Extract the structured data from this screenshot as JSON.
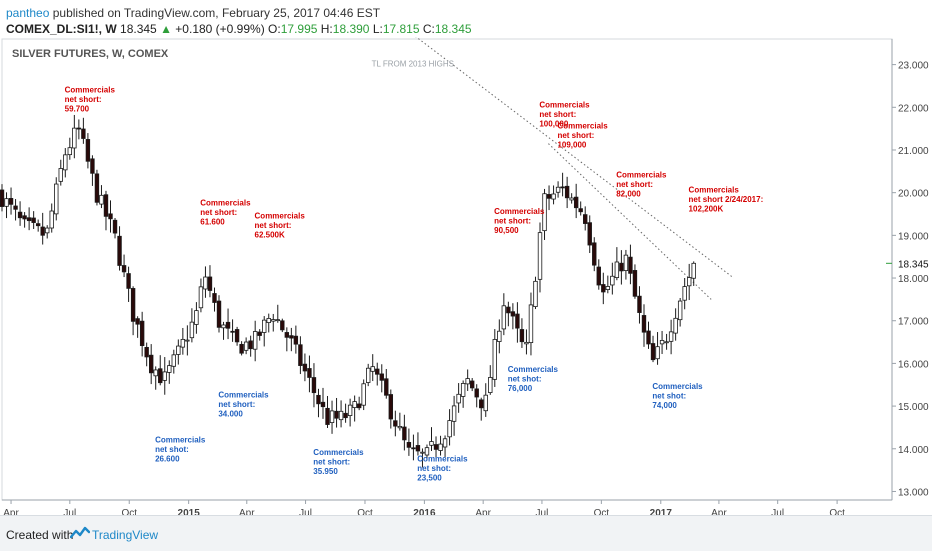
{
  "header": {
    "author": "pantheo",
    "published": "published on TradingView.com, February 25, 2017 04:46 EST",
    "symbol": "COMEX_DL:SI1!, W",
    "last": "18.345",
    "change": "+0.180 (+0.99%)",
    "open_label": "O:",
    "open": "17.995",
    "high_label": "H:",
    "high": "18.390",
    "low_label": "L:",
    "low": "17.815",
    "close_label": "C:",
    "close": "18.345"
  },
  "footer": {
    "created_with": "Created with",
    "brand": "TradingView"
  },
  "colors": {
    "up": "#2e9e3a",
    "down_candle": "#2a0a0a",
    "label_red": "#d40000",
    "label_blue": "#1f5fbf",
    "trendline": "#666666",
    "current_price_line": "#2e9e3a"
  },
  "chart_data": {
    "type": "candlestick",
    "title": "SILVER FUTURES, W, COMEX",
    "x_ticks": [
      "Apr",
      "Jul",
      "Oct",
      "2015",
      "Apr",
      "Jul",
      "Oct",
      "2016",
      "Apr",
      "Jul",
      "Oct",
      "2017",
      "Apr",
      "Jul",
      "Oct"
    ],
    "x_tick_dates": [
      "2014-04-01",
      "2014-07-01",
      "2014-10-01",
      "2015-01-01",
      "2015-04-01",
      "2015-07-01",
      "2015-10-01",
      "2016-01-01",
      "2016-04-01",
      "2016-07-01",
      "2016-10-01",
      "2017-01-01",
      "2017-04-01",
      "2017-07-01",
      "2017-10-01"
    ],
    "bold_ticks": [
      "2015",
      "2016",
      "2017"
    ],
    "y_ticks": [
      "13.000",
      "14.000",
      "15.000",
      "16.000",
      "17.000",
      "18.000",
      "19.000",
      "20.000",
      "21.000",
      "22.000",
      "23.000"
    ],
    "ylim": [
      12.8,
      23.6
    ],
    "xlim": [
      "2014-03-18",
      "2017-12-25"
    ],
    "current_price": "18.345",
    "anchors": [
      [
        "2014-03-18",
        19.9
      ],
      [
        "2014-04-21",
        19.2
      ],
      [
        "2014-05-26",
        19.0
      ],
      [
        "2014-06-23",
        20.9
      ],
      [
        "2014-07-14",
        21.5
      ],
      [
        "2014-08-11",
        20.0
      ],
      [
        "2014-09-08",
        19.0
      ],
      [
        "2014-10-06",
        17.2
      ],
      [
        "2014-11-03",
        16.0
      ],
      [
        "2014-11-24",
        15.6
      ],
      [
        "2014-12-15",
        16.2
      ],
      [
        "2015-01-12",
        17.1
      ],
      [
        "2015-01-26",
        18.1
      ],
      [
        "2015-02-16",
        17.0
      ],
      [
        "2015-03-16",
        16.4
      ],
      [
        "2015-04-13",
        16.5
      ],
      [
        "2015-05-11",
        17.2
      ],
      [
        "2015-06-08",
        16.5
      ],
      [
        "2015-07-06",
        15.6
      ],
      [
        "2015-08-03",
        14.7
      ],
      [
        "2015-08-24",
        14.7
      ],
      [
        "2015-09-14",
        14.9
      ],
      [
        "2015-10-12",
        15.9
      ],
      [
        "2015-11-02",
        15.2
      ],
      [
        "2015-12-07",
        13.9
      ],
      [
        "2016-01-04",
        13.8
      ],
      [
        "2016-02-01",
        14.4
      ],
      [
        "2016-03-07",
        15.6
      ],
      [
        "2016-04-04",
        15.0
      ],
      [
        "2016-05-02",
        17.5
      ],
      [
        "2016-06-06",
        16.2
      ],
      [
        "2016-07-04",
        19.8
      ],
      [
        "2016-08-01",
        20.1
      ],
      [
        "2016-09-05",
        19.5
      ],
      [
        "2016-10-03",
        17.6
      ],
      [
        "2016-11-07",
        18.5
      ],
      [
        "2016-12-05",
        16.7
      ],
      [
        "2016-12-19",
        16.0
      ],
      [
        "2017-01-09",
        16.6
      ],
      [
        "2017-02-06",
        17.8
      ],
      [
        "2017-02-24",
        18.345
      ]
    ],
    "trendlines": [
      {
        "name": "TL FROM 2013 HIGHS",
        "style": "dotted",
        "from": [
          "2015-11-23",
          23.95
        ],
        "to": [
          "2017-04-24",
          18.0
        ]
      },
      {
        "name": "",
        "style": "dotted",
        "from": [
          "2016-07-11",
          21.15
        ],
        "to": [
          "2017-03-20",
          17.5
        ]
      }
    ],
    "annotations": [
      {
        "lines": [
          "Commercials",
          "net short:",
          "59.700"
        ],
        "color": "red",
        "date": "2014-06-23",
        "y": 22.35
      },
      {
        "lines": [
          "Commercials",
          "net short:",
          "61.600"
        ],
        "color": "red",
        "date": "2015-01-19",
        "y": 19.7
      },
      {
        "lines": [
          "Commercials",
          "net short:",
          "62.500K"
        ],
        "color": "red",
        "date": "2015-04-13",
        "y": 19.4
      },
      {
        "lines": [
          "Commercials",
          "net short:",
          "90,500"
        ],
        "color": "red",
        "date": "2016-04-18",
        "y": 19.5
      },
      {
        "lines": [
          "Commercials",
          "net short:",
          "100,000"
        ],
        "color": "red",
        "date": "2016-06-27",
        "y": 22.0
      },
      {
        "lines": [
          "Commercials",
          "net short:",
          "109,000"
        ],
        "color": "red",
        "date": "2016-07-25",
        "y": 21.5
      },
      {
        "lines": [
          "Commercials",
          "net short:",
          "82,000"
        ],
        "color": "red",
        "date": "2016-10-24",
        "y": 20.35
      },
      {
        "lines": [
          "Commercials",
          "net short 2/24/2017:",
          "102,200K"
        ],
        "color": "red",
        "date": "2017-02-13",
        "y": 20.0
      },
      {
        "lines": [
          "Commercials",
          "net shot:",
          "26.600"
        ],
        "color": "blue",
        "date": "2014-11-10",
        "y": 14.15
      },
      {
        "lines": [
          "Commercials",
          "net short:",
          "34.000"
        ],
        "color": "blue",
        "date": "2015-02-16",
        "y": 15.2
      },
      {
        "lines": [
          "Commercials",
          "net short:",
          "35.950"
        ],
        "color": "blue",
        "date": "2015-07-13",
        "y": 13.85
      },
      {
        "lines": [
          "Commercials",
          "net shot:",
          "23,500"
        ],
        "color": "blue",
        "date": "2015-12-21",
        "y": 13.7
      },
      {
        "lines": [
          "Commercials",
          "net shot:",
          "76,000"
        ],
        "color": "blue",
        "date": "2016-05-09",
        "y": 15.8
      },
      {
        "lines": [
          "Commercials",
          "net shot:",
          "74,000"
        ],
        "color": "blue",
        "date": "2016-12-19",
        "y": 15.4
      }
    ],
    "trendline_label": "TL FROM 2013 HIGHS",
    "trendline_label_date": "2015-12-14",
    "trendline_label_y": 22.95
  }
}
